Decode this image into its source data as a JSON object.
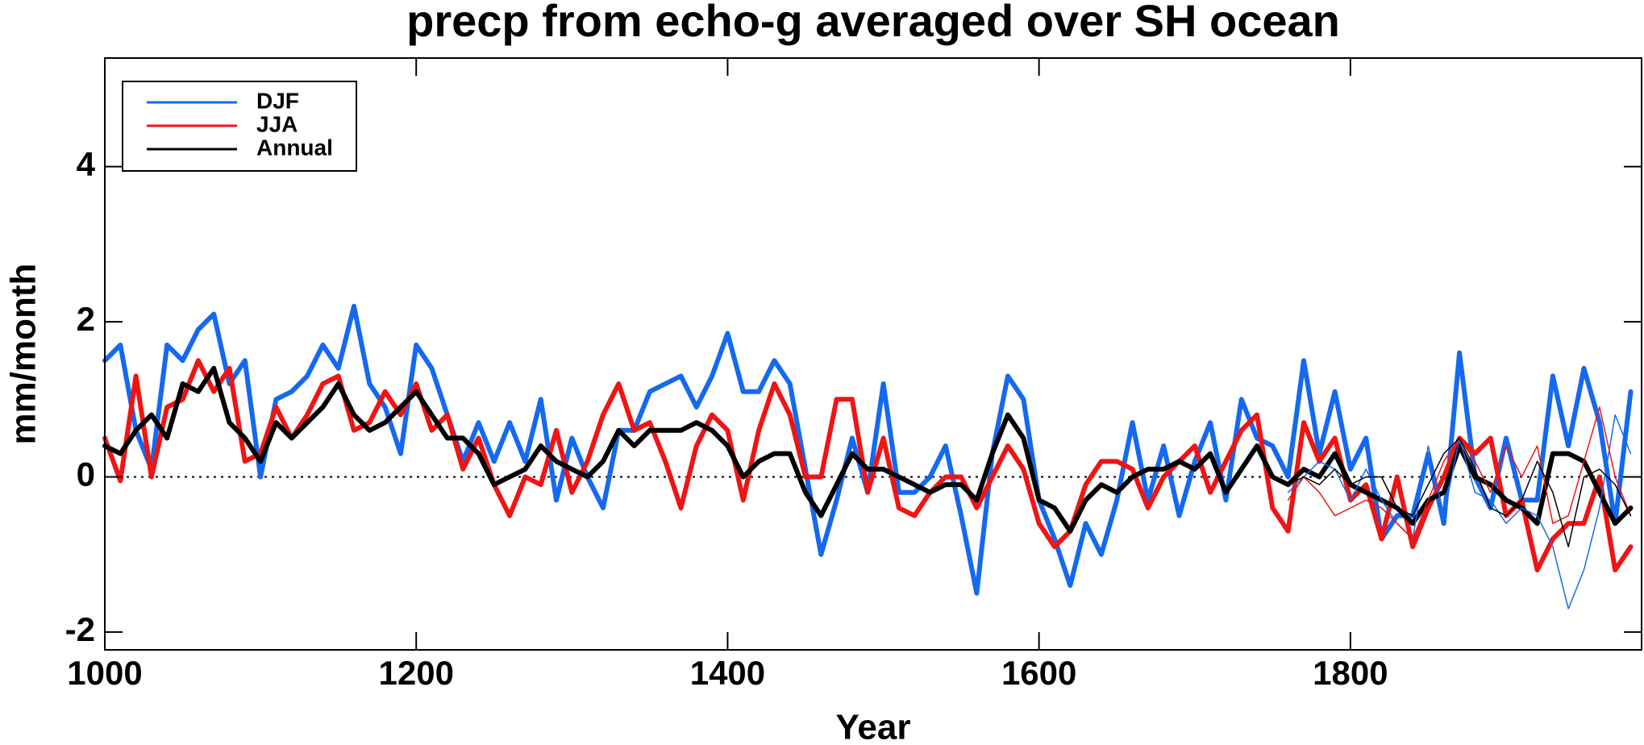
{
  "chart_data": {
    "type": "line",
    "title": "precp from echo-g averaged over SH ocean",
    "xlabel": "Year",
    "ylabel": "mm/month",
    "xlim": [
      1000,
      1987
    ],
    "xticks": [
      1000,
      1200,
      1400,
      1600,
      1800
    ],
    "ylim": [
      -2.23,
      5.4
    ],
    "yticks": [
      -2,
      0,
      2,
      4
    ],
    "reference_line": 0,
    "legend": "upper left",
    "x": [
      1000,
      1010,
      1020,
      1030,
      1040,
      1050,
      1060,
      1070,
      1080,
      1090,
      1100,
      1110,
      1120,
      1130,
      1140,
      1150,
      1160,
      1170,
      1180,
      1190,
      1200,
      1210,
      1220,
      1230,
      1240,
      1250,
      1260,
      1270,
      1280,
      1290,
      1300,
      1310,
      1320,
      1330,
      1340,
      1350,
      1360,
      1370,
      1380,
      1390,
      1400,
      1410,
      1420,
      1430,
      1440,
      1450,
      1460,
      1470,
      1480,
      1490,
      1500,
      1510,
      1520,
      1530,
      1540,
      1550,
      1560,
      1570,
      1580,
      1590,
      1600,
      1610,
      1620,
      1630,
      1640,
      1650,
      1660,
      1670,
      1680,
      1690,
      1700,
      1710,
      1720,
      1730,
      1740,
      1750,
      1760,
      1770,
      1780,
      1790,
      1800,
      1810,
      1820,
      1830,
      1840,
      1850,
      1860,
      1870,
      1880,
      1890,
      1900,
      1910,
      1920,
      1930,
      1940,
      1950,
      1960,
      1970,
      1980
    ],
    "series": [
      {
        "name": "DJF",
        "color": "#1469f0",
        "width": 6,
        "values": [
          1.5,
          1.7,
          0.6,
          0.1,
          1.7,
          1.5,
          1.9,
          2.1,
          1.2,
          1.5,
          0.0,
          1.0,
          1.1,
          1.3,
          1.7,
          1.4,
          2.2,
          1.2,
          0.9,
          0.3,
          1.7,
          1.4,
          0.8,
          0.2,
          0.7,
          0.2,
          0.7,
          0.2,
          1.0,
          -0.3,
          0.5,
          0.0,
          -0.4,
          0.6,
          0.6,
          1.1,
          1.2,
          1.3,
          0.9,
          1.3,
          1.85,
          1.1,
          1.1,
          1.5,
          1.2,
          0.1,
          -1.0,
          -0.3,
          0.5,
          -0.2,
          1.2,
          -0.2,
          -0.2,
          0.0,
          0.4,
          -0.5,
          -1.5,
          0.3,
          1.3,
          1.0,
          -0.3,
          -0.8,
          -1.4,
          -0.6,
          -1.0,
          -0.3,
          0.7,
          -0.3,
          0.4,
          -0.5,
          0.2,
          0.7,
          -0.3,
          1.0,
          0.5,
          0.4,
          0.0,
          1.5,
          0.3,
          1.1,
          0.1,
          0.5,
          -0.8,
          -0.5,
          -0.5,
          0.3,
          -0.6,
          1.6,
          0.0,
          -0.4,
          0.5,
          -0.3,
          -0.3,
          1.3,
          0.4,
          1.4,
          0.7,
          -0.6,
          1.1
        ]
      },
      {
        "name": "JJA",
        "color": "#f01414",
        "width": 6,
        "values": [
          0.5,
          -0.05,
          1.3,
          0.0,
          0.9,
          1.0,
          1.5,
          1.1,
          1.4,
          0.2,
          0.3,
          0.9,
          0.5,
          0.8,
          1.2,
          1.3,
          0.6,
          0.7,
          1.1,
          0.8,
          1.2,
          0.6,
          0.8,
          0.1,
          0.5,
          -0.1,
          -0.5,
          0.0,
          -0.1,
          0.6,
          -0.2,
          0.2,
          0.8,
          1.2,
          0.6,
          0.7,
          0.2,
          -0.4,
          0.4,
          0.8,
          0.6,
          -0.3,
          0.6,
          1.2,
          0.8,
          0.0,
          0.0,
          1.0,
          1.0,
          -0.2,
          0.5,
          -0.4,
          -0.5,
          -0.2,
          0.0,
          0.0,
          -0.4,
          0.0,
          0.4,
          0.1,
          -0.6,
          -0.9,
          -0.7,
          -0.1,
          0.2,
          0.2,
          0.1,
          -0.4,
          0.0,
          0.2,
          0.4,
          -0.2,
          0.2,
          0.6,
          0.8,
          -0.4,
          -0.7,
          0.7,
          0.2,
          0.5,
          -0.3,
          -0.1,
          -0.8,
          0.0,
          -0.9,
          -0.4,
          0.0,
          0.5,
          0.3,
          0.5,
          -0.5,
          -0.3,
          -1.2,
          -0.8,
          -0.6,
          -0.6,
          0.0,
          -1.2,
          -0.9
        ]
      },
      {
        "name": "Annual",
        "color": "#000000",
        "width": 6,
        "values": [
          0.4,
          0.3,
          0.6,
          0.8,
          0.5,
          1.2,
          1.1,
          1.4,
          0.7,
          0.5,
          0.2,
          0.7,
          0.5,
          0.7,
          0.9,
          1.2,
          0.8,
          0.6,
          0.7,
          0.9,
          1.1,
          0.8,
          0.5,
          0.5,
          0.3,
          -0.1,
          0.0,
          0.1,
          0.4,
          0.2,
          0.1,
          0.0,
          0.2,
          0.6,
          0.4,
          0.6,
          0.6,
          0.6,
          0.7,
          0.6,
          0.4,
          0.0,
          0.2,
          0.3,
          0.3,
          -0.2,
          -0.5,
          -0.1,
          0.3,
          0.1,
          0.1,
          0.0,
          -0.1,
          -0.2,
          -0.1,
          -0.1,
          -0.3,
          0.3,
          0.8,
          0.5,
          -0.3,
          -0.4,
          -0.7,
          -0.3,
          -0.1,
          -0.2,
          0.0,
          0.1,
          0.1,
          0.2,
          0.1,
          0.3,
          -0.2,
          0.1,
          0.4,
          0.0,
          -0.1,
          0.1,
          0.0,
          0.3,
          -0.1,
          -0.2,
          -0.3,
          -0.4,
          -0.6,
          -0.3,
          -0.2,
          0.4,
          0.0,
          -0.1,
          -0.3,
          -0.4,
          -0.6,
          0.3,
          0.3,
          0.2,
          -0.2,
          -0.6,
          -0.4
        ]
      },
      {
        "color": "#1469f0",
        "width": 1.5,
        "x": [
          1760,
          1770,
          1780,
          1790,
          1800,
          1810,
          1820,
          1830,
          1840,
          1850,
          1860,
          1870,
          1880,
          1890,
          1900,
          1910,
          1920,
          1930,
          1940,
          1950,
          1960,
          1970,
          1980
        ],
        "values": [
          -0.2,
          0.0,
          0.2,
          0.1,
          -0.3,
          0.1,
          -0.3,
          -0.6,
          -0.8,
          0.4,
          -0.5,
          0.5,
          -0.2,
          -0.3,
          -0.6,
          -0.4,
          -0.5,
          -0.9,
          -1.7,
          -1.2,
          -0.4,
          0.8,
          0.3
        ]
      },
      {
        "color": "#f01414",
        "width": 1.5,
        "x": [
          1760,
          1770,
          1780,
          1790,
          1800,
          1810,
          1820,
          1830,
          1840,
          1850,
          1860,
          1870,
          1880,
          1890,
          1900,
          1910,
          1920,
          1930,
          1940,
          1950,
          1960,
          1970,
          1980
        ],
        "values": [
          -0.3,
          0.0,
          -0.2,
          -0.5,
          -0.4,
          -0.3,
          -0.4,
          -0.6,
          -0.8,
          -0.3,
          0.2,
          0.5,
          0.2,
          -0.2,
          0.4,
          0.0,
          0.4,
          -0.6,
          -0.5,
          0.2,
          0.9,
          0.0,
          -0.5
        ]
      },
      {
        "color": "#000000",
        "width": 1.5,
        "x": [
          1760,
          1770,
          1780,
          1790,
          1800,
          1810,
          1820,
          1830,
          1840,
          1850,
          1860,
          1870,
          1880,
          1890,
          1900,
          1910,
          1920,
          1930,
          1940,
          1950,
          1960,
          1970,
          1980
        ],
        "values": [
          -0.1,
          0.0,
          -0.1,
          0.1,
          -0.1,
          0.0,
          0.0,
          -0.4,
          -0.5,
          -0.1,
          0.3,
          0.5,
          0.1,
          -0.4,
          -0.5,
          -0.3,
          0.2,
          -0.2,
          -0.9,
          0.0,
          0.1,
          -0.1,
          -0.5
        ]
      }
    ]
  }
}
